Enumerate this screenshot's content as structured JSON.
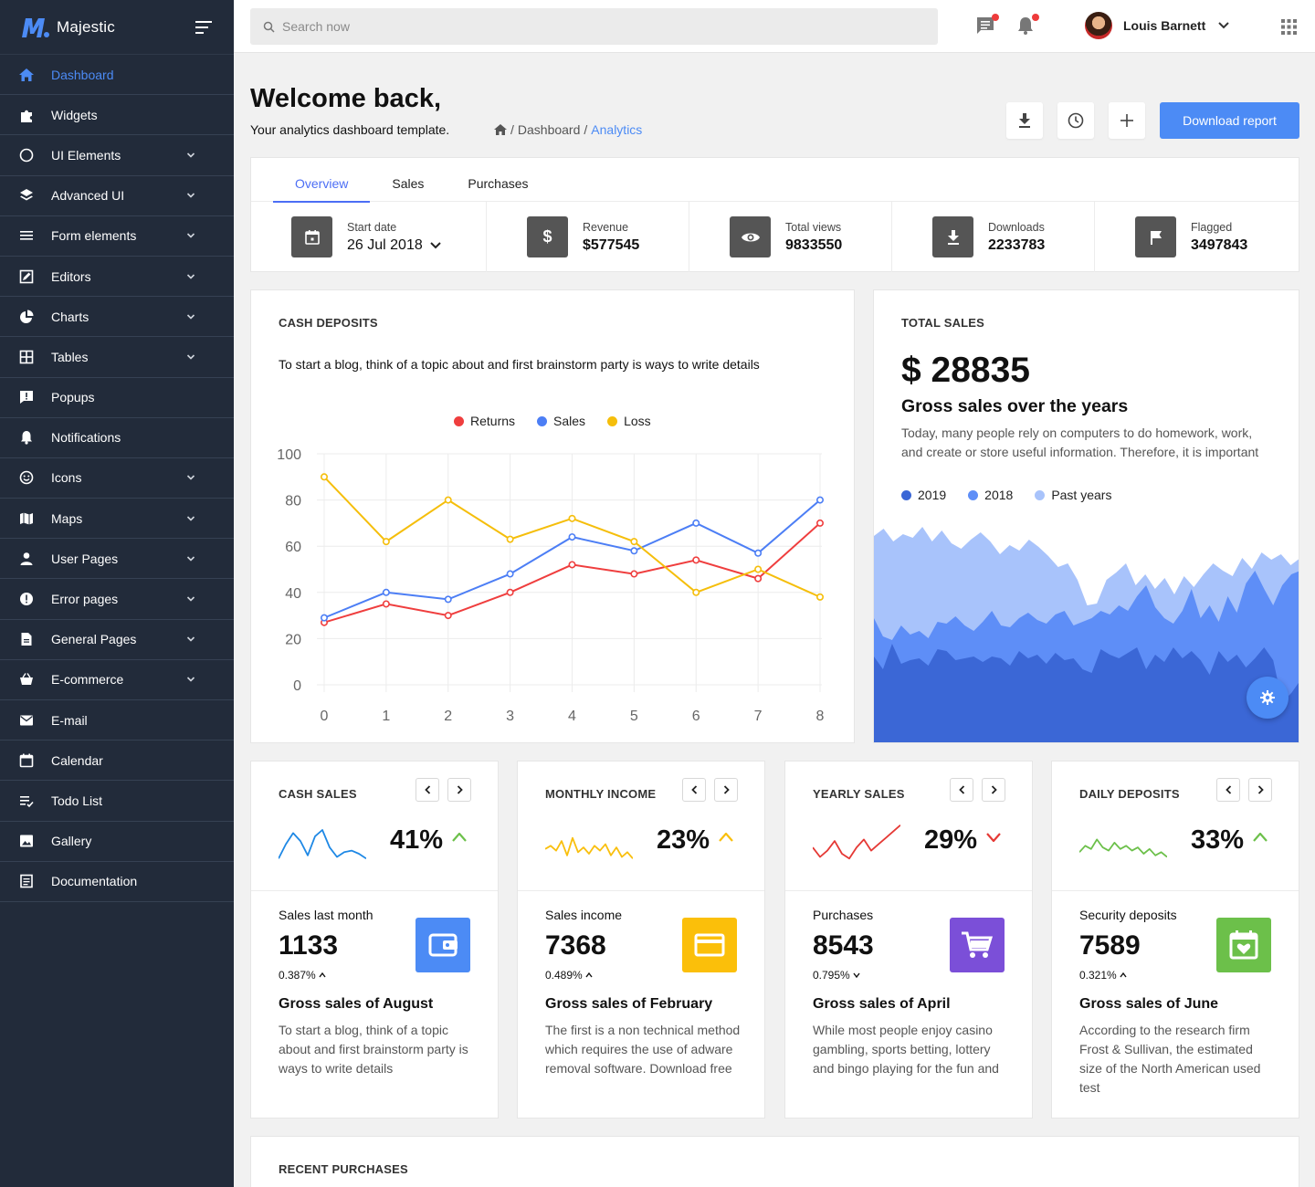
{
  "brand": {
    "name": "Majestic",
    "accent": "#4c8bf5"
  },
  "sidebar": {
    "items": [
      {
        "label": "Dashboard",
        "icon": "home-icon",
        "active": true,
        "expandable": false
      },
      {
        "label": "Widgets",
        "icon": "puzzle-icon",
        "expandable": false
      },
      {
        "label": "UI Elements",
        "icon": "circle-icon",
        "expandable": true
      },
      {
        "label": "Advanced UI",
        "icon": "layers-icon",
        "expandable": true
      },
      {
        "label": "Form elements",
        "icon": "list-icon",
        "expandable": true
      },
      {
        "label": "Editors",
        "icon": "edit-box-icon",
        "expandable": true
      },
      {
        "label": "Charts",
        "icon": "pie-chart-icon",
        "expandable": true
      },
      {
        "label": "Tables",
        "icon": "table-icon",
        "expandable": true
      },
      {
        "label": "Popups",
        "icon": "alert-message-icon",
        "expandable": false
      },
      {
        "label": "Notifications",
        "icon": "bell-icon",
        "expandable": false
      },
      {
        "label": "Icons",
        "icon": "smiley-icon",
        "expandable": true
      },
      {
        "label": "Maps",
        "icon": "map-icon",
        "expandable": true
      },
      {
        "label": "User Pages",
        "icon": "user-icon",
        "expandable": true
      },
      {
        "label": "Error pages",
        "icon": "error-icon",
        "expandable": true
      },
      {
        "label": "General Pages",
        "icon": "file-icon",
        "expandable": true
      },
      {
        "label": "E-commerce",
        "icon": "basket-icon",
        "expandable": true
      },
      {
        "label": "E-mail",
        "icon": "mail-icon",
        "expandable": false
      },
      {
        "label": "Calendar",
        "icon": "calendar-icon",
        "expandable": false
      },
      {
        "label": "Todo List",
        "icon": "checklist-icon",
        "expandable": false
      },
      {
        "label": "Gallery",
        "icon": "image-icon",
        "expandable": false
      },
      {
        "label": "Documentation",
        "icon": "document-icon",
        "expandable": false
      }
    ]
  },
  "topbar": {
    "search_placeholder": "Search now",
    "user_name": "Louis Barnett"
  },
  "header": {
    "title": "Welcome back,",
    "subtitle": "Your analytics dashboard template.",
    "breadcrumb": {
      "home": "/",
      "dashboard": "Dashboard",
      "sep": "/",
      "current": "Analytics"
    },
    "download_report": "Download report"
  },
  "tabs": [
    "Overview",
    "Sales",
    "Purchases"
  ],
  "stats": {
    "start_date": {
      "label": "Start date",
      "value": "26 Jul 2018"
    },
    "revenue": {
      "label": "Revenue",
      "value": "$577545"
    },
    "views": {
      "label": "Total views",
      "value": "9833550"
    },
    "downloads": {
      "label": "Downloads",
      "value": "2233783"
    },
    "flagged": {
      "label": "Flagged",
      "value": "3497843"
    }
  },
  "cash_deposits": {
    "title": "CASH DEPOSITS",
    "description": "To start a blog, think of a topic about and first brainstorm party is ways to write details"
  },
  "total_sales": {
    "title": "TOTAL SALES",
    "amount": "$ 28835",
    "heading": "Gross sales over the years",
    "text": "Today, many people rely on computers to do homework, work, and create or store useful information. Therefore, it is important",
    "legend": [
      {
        "name": "2019",
        "color": "#3b67d6"
      },
      {
        "name": "2018",
        "color": "#5e8ef7"
      },
      {
        "name": "Past years",
        "color": "#a8c3fb"
      }
    ]
  },
  "cards": [
    {
      "title": "CASH SALES",
      "pct": "41%",
      "trend": "up",
      "trend_color": "#6cc04a",
      "spark_color": "#1e88e5",
      "label": "Sales last month",
      "number": "1133",
      "small": "0.387%",
      "small_dir": "up",
      "icon": "wallet-icon",
      "icon_bg": "#4c8bf5",
      "heading": "Gross sales of August",
      "text": "To start a blog, think of a topic about and first brainstorm party is ways to write details"
    },
    {
      "title": "MONTHLY INCOME",
      "pct": "23%",
      "trend": "up",
      "trend_color": "#f9bf0d",
      "spark_color": "#f9bf0d",
      "label": "Sales income",
      "number": "7368",
      "small": "0.489%",
      "small_dir": "up",
      "icon": "credit-card-icon",
      "icon_bg": "#fbbf0a",
      "heading": "Gross sales of February",
      "text": "The first is a non technical method which requires the use of adware removal software. Download free"
    },
    {
      "title": "YEARLY SALES",
      "pct": "29%",
      "trend": "down",
      "trend_color": "#e53935",
      "spark_color": "#e53935",
      "label": "Purchases",
      "number": "8543",
      "small": "0.795%",
      "small_dir": "down",
      "icon": "cart-icon",
      "icon_bg": "#7b4fd8",
      "heading": "Gross sales of April",
      "text": "While most people enjoy casino gambling, sports betting, lottery and bingo playing for the fun and"
    },
    {
      "title": "DAILY DEPOSITS",
      "pct": "33%",
      "trend": "up",
      "trend_color": "#6cc04a",
      "spark_color": "#6cc04a",
      "label": "Security deposits",
      "number": "7589",
      "small": "0.321%",
      "small_dir": "up",
      "icon": "calendar-heart-icon",
      "icon_bg": "#6cc04a",
      "heading": "Gross sales of June",
      "text": "According to the research firm Frost & Sullivan, the estimated size of the North American used test"
    }
  ],
  "recent_purchases": {
    "title": "RECENT PURCHASES"
  },
  "chart_data": {
    "type": "line",
    "x": [
      0,
      1,
      2,
      3,
      4,
      5,
      6,
      7,
      8
    ],
    "series": [
      {
        "name": "Returns",
        "color": "#ef3e3e",
        "values": [
          27,
          35,
          30,
          40,
          52,
          48,
          54,
          46,
          70
        ]
      },
      {
        "name": "Sales",
        "color": "#4c7ef5",
        "values": [
          29,
          40,
          37,
          48,
          64,
          58,
          70,
          57,
          80
        ]
      },
      {
        "name": "Loss",
        "color": "#f5be0b",
        "values": [
          90,
          62,
          80,
          63,
          72,
          62,
          40,
          50,
          38
        ]
      }
    ],
    "ylim": [
      0,
      100
    ],
    "yticks": [
      0,
      20,
      40,
      60,
      80,
      100
    ],
    "grid": true,
    "legend": "top-center"
  }
}
